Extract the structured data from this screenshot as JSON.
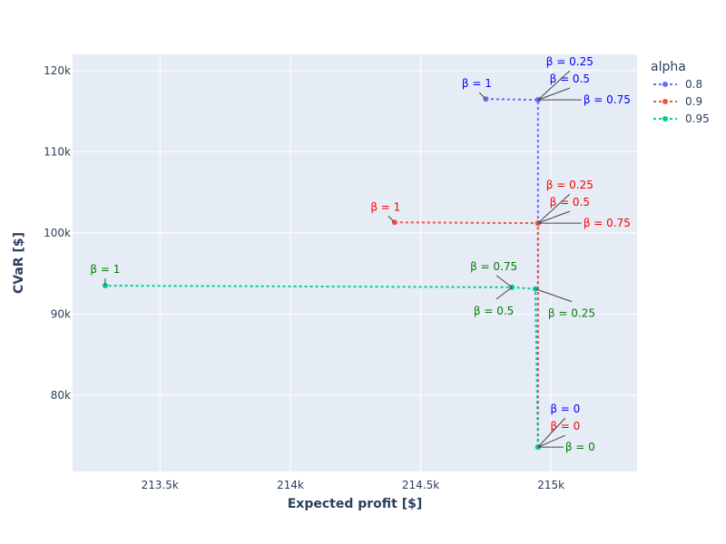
{
  "chart_data": {
    "type": "line",
    "xlabel": "Expected profit [$]",
    "ylabel": "CVaR [$]",
    "xlim": [
      213165,
      215330
    ],
    "ylim": [
      70600,
      122000
    ],
    "x_ticks": [
      {
        "value": 213500,
        "label": "213.5k"
      },
      {
        "value": 214000,
        "label": "214k"
      },
      {
        "value": 214500,
        "label": "214.5k"
      },
      {
        "value": 215000,
        "label": "215k"
      }
    ],
    "y_ticks": [
      {
        "value": 80000,
        "label": "80k"
      },
      {
        "value": 90000,
        "label": "90k"
      },
      {
        "value": 100000,
        "label": "100k"
      },
      {
        "value": 110000,
        "label": "110k"
      },
      {
        "value": 120000,
        "label": "120k"
      }
    ],
    "grid": true,
    "legend": {
      "title": "alpha",
      "position": "top-right"
    },
    "series": [
      {
        "name": "0.8",
        "color": "#636efa",
        "label_color": "#0000ff",
        "points": [
          {
            "x": 214950,
            "y": 73600,
            "label": "β = 0"
          },
          {
            "x": 214950,
            "y": 116400,
            "label": "β = 0.25"
          },
          {
            "x": 214950,
            "y": 116400,
            "label": "β = 0.5"
          },
          {
            "x": 214950,
            "y": 116400,
            "label": "β = 0.75"
          },
          {
            "x": 214750,
            "y": 116500,
            "label": "β = 1"
          }
        ]
      },
      {
        "name": "0.9",
        "color": "#ef553b",
        "label_color": "#ff0000",
        "points": [
          {
            "x": 214950,
            "y": 73600,
            "label": "β = 0"
          },
          {
            "x": 214950,
            "y": 101200,
            "label": "β = 0.25"
          },
          {
            "x": 214950,
            "y": 101200,
            "label": "β = 0.5"
          },
          {
            "x": 214950,
            "y": 101200,
            "label": "β = 0.75"
          },
          {
            "x": 214400,
            "y": 101300,
            "label": "β = 1"
          }
        ]
      },
      {
        "name": "0.95",
        "color": "#00cc96",
        "label_color": "#008000",
        "points": [
          {
            "x": 214950,
            "y": 73600,
            "label": "β = 0"
          },
          {
            "x": 214940,
            "y": 93100,
            "label": "β = 0.25"
          },
          {
            "x": 214850,
            "y": 93300,
            "label": "β = 0.5"
          },
          {
            "x": 214850,
            "y": 93300,
            "label": "β = 0.75"
          },
          {
            "x": 213290,
            "y": 93500,
            "label": "β = 1"
          }
        ]
      }
    ],
    "annotations": [
      {
        "series": 0,
        "point": 4,
        "ax": -10,
        "ay": -13
      },
      {
        "series": 0,
        "point": 1,
        "ax": 35,
        "ay": -38
      },
      {
        "series": 0,
        "point": 2,
        "ax": 35,
        "ay": -19
      },
      {
        "series": 0,
        "point": 3,
        "ax": 50,
        "ay": 0
      },
      {
        "series": 1,
        "point": 4,
        "ax": -10,
        "ay": -13
      },
      {
        "series": 1,
        "point": 1,
        "ax": 35,
        "ay": -38
      },
      {
        "series": 1,
        "point": 2,
        "ax": 35,
        "ay": -19
      },
      {
        "series": 1,
        "point": 3,
        "ax": 50,
        "ay": 0
      },
      {
        "series": 2,
        "point": 4,
        "ax": 0,
        "ay": -14
      },
      {
        "series": 2,
        "point": 3,
        "ax": -20,
        "ay": -19
      },
      {
        "series": 2,
        "point": 2,
        "ax": -20,
        "ay": 20
      },
      {
        "series": 2,
        "point": 1,
        "ax": 40,
        "ay": 21
      },
      {
        "series": 0,
        "point": 0,
        "ax": 30,
        "ay": -38
      },
      {
        "series": 1,
        "point": 0,
        "ax": 30,
        "ay": -19
      },
      {
        "series": 2,
        "point": 0,
        "ax": 30,
        "ay": 0
      }
    ]
  }
}
